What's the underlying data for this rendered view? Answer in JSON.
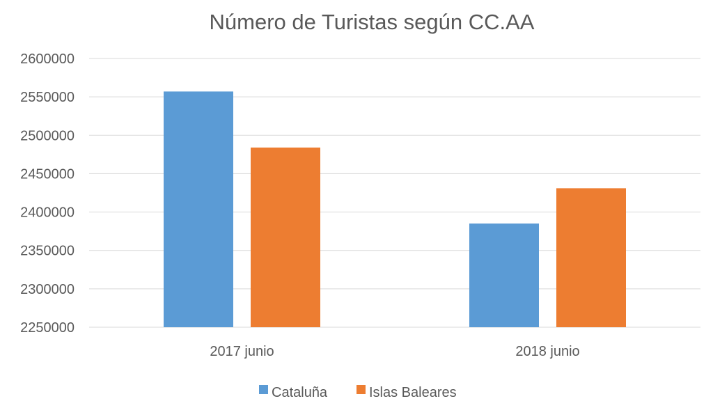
{
  "chart_data": {
    "type": "bar",
    "title": "Número de Turistas según CC.AA",
    "xlabel": "",
    "ylabel": "",
    "categories": [
      "2017 junio",
      "2018 junio"
    ],
    "series": [
      {
        "name": "Cataluña",
        "values": [
          2557000,
          2385000
        ],
        "color": "#5B9BD5"
      },
      {
        "name": "Islas Baleares",
        "values": [
          2484000,
          2431000
        ],
        "color": "#ED7D31"
      }
    ],
    "ylim": [
      2250000,
      2600000
    ],
    "yticks": [
      2250000,
      2300000,
      2350000,
      2400000,
      2450000,
      2500000,
      2550000,
      2600000
    ],
    "grid": true,
    "legend_position": "bottom"
  }
}
